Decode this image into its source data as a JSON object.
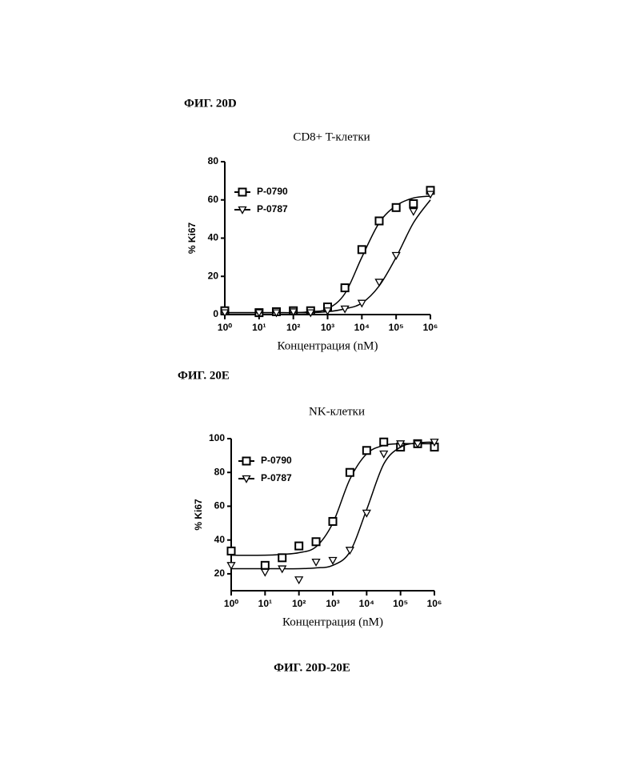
{
  "figure_labels": [
    "ФИГ. 20D",
    "ФИГ. 20E"
  ],
  "caption": "ФИГ. 20D-20E",
  "chart_data": [
    {
      "type": "scatter",
      "title": "CD8+ T-клетки",
      "x_label": "Концентрация (nM)",
      "y_label": "% Ki67",
      "xscale": "log",
      "xlim": [
        1,
        1000000
      ],
      "xticks": [
        {
          "value": 1,
          "label": "10⁰"
        },
        {
          "value": 10,
          "label": "10¹"
        },
        {
          "value": 100,
          "label": "10²"
        },
        {
          "value": 1000,
          "label": "10³"
        },
        {
          "value": 10000,
          "label": "10⁴"
        },
        {
          "value": 100000,
          "label": "10⁵"
        },
        {
          "value": 1000000,
          "label": "10⁶"
        }
      ],
      "ylim": [
        0,
        80
      ],
      "yticks": [
        0,
        20,
        40,
        60,
        80
      ],
      "x": [
        1,
        10,
        32,
        100,
        320,
        1000,
        3200,
        10000,
        32000,
        100000,
        320000,
        1000000
      ],
      "series": [
        {
          "name": "P-0790",
          "color": "#000000",
          "marker": "square",
          "values": [
            2,
            1,
            1.5,
            2,
            2,
            4,
            14,
            34,
            49,
            56,
            58,
            65
          ],
          "fit_values": [
            1,
            1,
            1,
            1,
            1.5,
            3,
            11,
            30,
            48,
            57,
            61,
            62
          ]
        },
        {
          "name": "P-0787",
          "color": "#000000",
          "marker": "triangle-down",
          "values": [
            1,
            1,
            1,
            1.5,
            1,
            2,
            3,
            6,
            17,
            31,
            54,
            63
          ],
          "fit_values": [
            1,
            1,
            1,
            1,
            1,
            1.5,
            3,
            6,
            15,
            30,
            48,
            60
          ]
        }
      ]
    },
    {
      "type": "scatter",
      "title": "NK-клетки",
      "x_label": "Концентрация (nM)",
      "y_label": "% Ki67",
      "xscale": "log",
      "xlim": [
        1,
        1000000
      ],
      "xticks": [
        {
          "value": 1,
          "label": "10⁰"
        },
        {
          "value": 10,
          "label": "10¹"
        },
        {
          "value": 100,
          "label": "10²"
        },
        {
          "value": 1000,
          "label": "10³"
        },
        {
          "value": 10000,
          "label": "10⁴"
        },
        {
          "value": 100000,
          "label": "10⁵"
        },
        {
          "value": 1000000,
          "label": "10⁶"
        }
      ],
      "ylim": [
        10,
        100
      ],
      "yticks": [
        20,
        40,
        60,
        80,
        100
      ],
      "x": [
        1,
        10,
        32,
        100,
        320,
        1000,
        3200,
        10000,
        32000,
        100000,
        320000,
        1000000
      ],
      "series": [
        {
          "name": "P-0790",
          "color": "#000000",
          "marker": "square",
          "values": [
            33.5,
            25,
            29.5,
            36.5,
            39,
            51,
            80,
            93,
            98,
            95,
            97,
            95
          ],
          "fit_values": [
            31,
            31,
            31.5,
            32.5,
            36,
            50,
            76,
            91,
            96,
            97,
            97,
            97
          ]
        },
        {
          "name": "P-0787",
          "color": "#000000",
          "marker": "triangle-down",
          "values": [
            25,
            21,
            23,
            16.5,
            27,
            28,
            34,
            56,
            91,
            97,
            97,
            98
          ],
          "fit_values": [
            23,
            23,
            23,
            23,
            23.5,
            25,
            33,
            58,
            85,
            95,
            97.5,
            98
          ]
        }
      ]
    }
  ]
}
